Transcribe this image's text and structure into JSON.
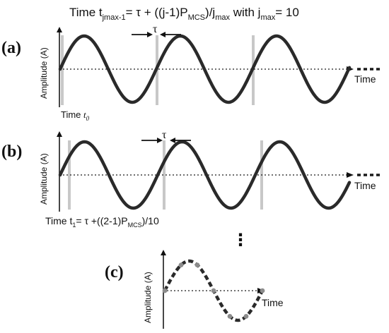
{
  "header": {
    "title_prefix": "Time t",
    "title_sub": "jmax-1",
    "title_mid": "= τ + ((j-1)P",
    "title_sub2": "MCS",
    "title_mid2": ")/j",
    "title_sub3": "max",
    "title_end": " with j",
    "title_sub4": "max",
    "title_tail": "= 10"
  },
  "panel_a": {
    "label": "(a)",
    "ylabel": "Amplitude (A)",
    "xlabel": "Time",
    "tau": "τ",
    "time_prefix": "Time ",
    "time_var": "t",
    "time_sub": "0"
  },
  "panel_b": {
    "label": "(b)",
    "ylabel": "Amplitude (A)",
    "xlabel": "Time",
    "tau": "τ",
    "time_prefix": "Time t",
    "time_sub": "1",
    "time_mid": "= τ +((2-1)P",
    "time_sub2": "MCS",
    "time_end": ")/10"
  },
  "continuation": "⋮",
  "panel_c": {
    "label": "(c)",
    "ylabel": "Amplitude (A)",
    "xlabel": "Time"
  },
  "colors": {
    "wave": "#2a2a2a",
    "marker": "#c8c8c8",
    "dots": "#8c8c8c",
    "axis": "#1a1a1a"
  }
}
